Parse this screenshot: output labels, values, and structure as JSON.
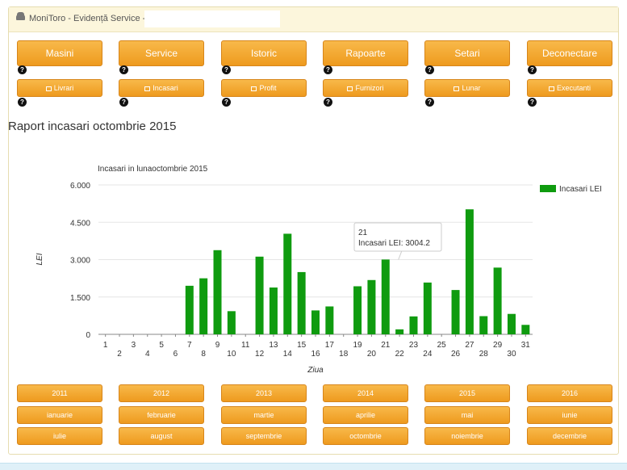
{
  "header": {
    "title": "MoniToro - Evidență Service -",
    "icon": "car-icon"
  },
  "nav_top": [
    {
      "label": "Masini",
      "help": "?"
    },
    {
      "label": "Service",
      "help": "?"
    },
    {
      "label": "Istoric",
      "help": "?"
    },
    {
      "label": "Rapoarte",
      "help": "?"
    },
    {
      "label": "Setari",
      "help": "?"
    },
    {
      "label": "Deconectare",
      "help": "?"
    }
  ],
  "nav_sub": [
    {
      "label": "Livrari",
      "icon": "arrow-right-icon",
      "help": "?"
    },
    {
      "label": "Incasari",
      "icon": "money-icon",
      "help": "?"
    },
    {
      "label": "Profit",
      "icon": "line-chart-icon",
      "help": "?"
    },
    {
      "label": "Furnizori",
      "icon": "sitemap-icon",
      "help": "?"
    },
    {
      "label": "Lunar",
      "icon": "calendar-icon",
      "help": "?"
    },
    {
      "label": "Executanti",
      "icon": "user-icon",
      "help": "?"
    }
  ],
  "report_title": "Raport incasari octombrie 2015",
  "chart_data": {
    "type": "bar",
    "title": "Incasari in lunaoctombrie 2015",
    "xlabel": "Ziua",
    "ylabel": "LEI",
    "ylim": [
      0,
      6000
    ],
    "yticks": [
      "0",
      "1.500",
      "3.000",
      "4.500",
      "6.000"
    ],
    "legend": "top-right",
    "series": [
      {
        "name": "Incasari LEI",
        "color": "#0f9b0f",
        "values": [
          0,
          0,
          0,
          0,
          0,
          0,
          1950,
          2250,
          3380,
          930,
          0,
          3120,
          1880,
          4040,
          2500,
          960,
          1120,
          0,
          1930,
          2180,
          3004.2,
          200,
          720,
          2080,
          0,
          1780,
          5020,
          730,
          2680,
          820,
          380
        ]
      }
    ],
    "categories": [
      "1",
      "2",
      "3",
      "4",
      "5",
      "6",
      "7",
      "8",
      "9",
      "10",
      "11",
      "12",
      "13",
      "14",
      "15",
      "16",
      "17",
      "18",
      "19",
      "20",
      "21",
      "22",
      "23",
      "24",
      "25",
      "26",
      "27",
      "28",
      "29",
      "30",
      "31"
    ],
    "tooltip": {
      "day": "21",
      "label": "Incasari LEI: 3004.2"
    }
  },
  "years": [
    "2011",
    "2012",
    "2013",
    "2014",
    "2015",
    "2016"
  ],
  "months_row1": [
    "ianuarie",
    "februarie",
    "martie",
    "aprilie",
    "mai",
    "iunie"
  ],
  "months_row2": [
    "iulie",
    "august",
    "septembrie",
    "octombrie",
    "noiembrie",
    "decembrie"
  ]
}
